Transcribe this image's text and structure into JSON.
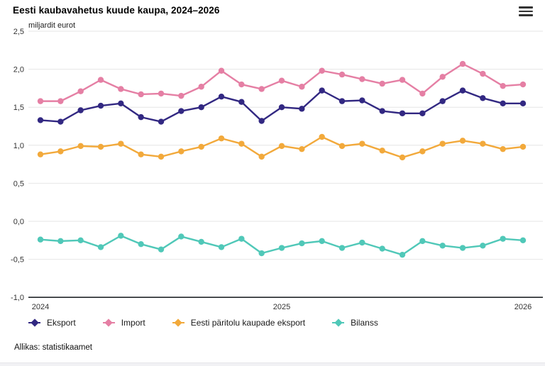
{
  "header": {
    "title": "Eesti kaubavahetus kuude kaupa, 2024–2026",
    "menu_icon": "hamburger-icon"
  },
  "chart_data": {
    "type": "line",
    "title": "Eesti kaubavahetus kuude kaupa, 2024–2026",
    "subtitle": "miljardit eurot",
    "xlabel": "",
    "ylabel": "miljardit eurot",
    "ylim": [
      -1.0,
      2.5
    ],
    "ytick_step": 0.5,
    "ytick_labels": [
      "2,5",
      "2,0",
      "1,5",
      "1,0",
      "0,5",
      "0,0",
      "-0,5",
      "-1,0"
    ],
    "ytick_values": [
      2.5,
      2.0,
      1.5,
      1.0,
      0.5,
      0.0,
      -0.5,
      -1.0
    ],
    "grid": true,
    "legend_position": "bottom-left",
    "xticks": [
      {
        "label": "2024",
        "index": 0
      },
      {
        "label": "2025",
        "index": 12
      },
      {
        "label": "2026",
        "index": 24
      }
    ],
    "categories": [
      "2024-01",
      "2024-02",
      "2024-03",
      "2024-04",
      "2024-05",
      "2024-06",
      "2024-07",
      "2024-08",
      "2024-09",
      "2024-10",
      "2024-11",
      "2024-12",
      "2025-01",
      "2025-02",
      "2025-03",
      "2025-04",
      "2025-05",
      "2025-06",
      "2025-07",
      "2025-08",
      "2025-09",
      "2025-10",
      "2025-11",
      "2025-12",
      "2026-01"
    ],
    "series": [
      {
        "name": "Eksport",
        "color": "#322882",
        "values": [
          1.33,
          1.31,
          1.46,
          1.52,
          1.55,
          1.37,
          1.31,
          1.45,
          1.5,
          1.64,
          1.57,
          1.32,
          1.5,
          1.48,
          1.72,
          1.58,
          1.59,
          1.45,
          1.42,
          1.42,
          1.58,
          1.72,
          1.62,
          1.55,
          1.55
        ]
      },
      {
        "name": "Import",
        "color": "#e57fa4",
        "values": [
          1.58,
          1.58,
          1.71,
          1.86,
          1.74,
          1.67,
          1.68,
          1.65,
          1.77,
          1.98,
          1.8,
          1.74,
          1.85,
          1.77,
          1.98,
          1.93,
          1.87,
          1.81,
          1.86,
          1.68,
          1.9,
          2.07,
          1.94,
          1.78,
          1.8
        ]
      },
      {
        "name": "Eesti päritolu kaupade eksport",
        "color": "#f2a93b",
        "values": [
          0.88,
          0.92,
          0.99,
          0.98,
          1.02,
          0.88,
          0.85,
          0.92,
          0.98,
          1.09,
          1.02,
          0.85,
          0.99,
          0.95,
          1.11,
          0.99,
          1.02,
          0.93,
          0.84,
          0.92,
          1.02,
          1.06,
          1.02,
          0.95,
          0.98
        ]
      },
      {
        "name": "Bilanss",
        "color": "#50c8b8",
        "values": [
          -0.24,
          -0.26,
          -0.25,
          -0.34,
          -0.19,
          -0.3,
          -0.37,
          -0.2,
          -0.27,
          -0.34,
          -0.23,
          -0.42,
          -0.35,
          -0.29,
          -0.26,
          -0.35,
          -0.28,
          -0.36,
          -0.44,
          -0.26,
          -0.32,
          -0.35,
          -0.32,
          -0.23,
          -0.25
        ]
      }
    ]
  },
  "colors": {
    "grid": "#e6e6e6",
    "axis_line": "#24272b",
    "tick_text": "#333333"
  },
  "footer": {
    "source": "Allikas: statistikaamet"
  }
}
